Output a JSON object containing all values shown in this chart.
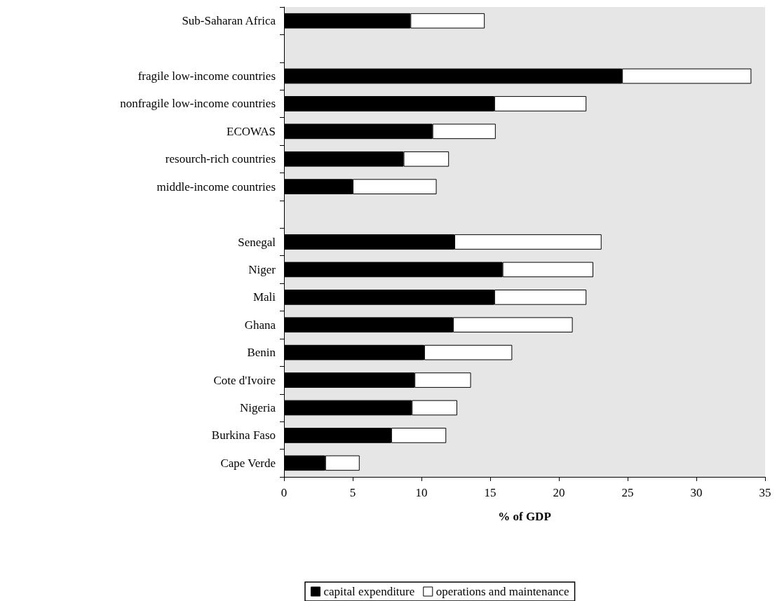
{
  "chart_data": {
    "type": "bar",
    "orientation": "horizontal",
    "stacked": true,
    "xlabel": "% of GDP",
    "categories": [
      "Sub-Saharan Africa",
      null,
      "fragile low-income countries",
      "nonfragile low-income countries",
      "ECOWAS",
      "resourch-rich countries",
      "middle-income countries",
      null,
      "Senegal",
      "Niger",
      "Mali",
      "Ghana",
      "Benin",
      "Cote d'Ivoire",
      "Nigeria",
      "Burkina Faso",
      "Cape Verde"
    ],
    "series": [
      {
        "name": "capital expenditure",
        "color": "#000000",
        "values": [
          9.2,
          null,
          24.6,
          15.3,
          10.8,
          8.7,
          5.0,
          null,
          12.4,
          15.9,
          15.3,
          12.3,
          10.2,
          9.5,
          9.3,
          7.8,
          3.0
        ]
      },
      {
        "name": "operations and maintenance",
        "color": "#ffffff",
        "values": [
          5.4,
          null,
          9.4,
          6.7,
          4.6,
          3.3,
          6.1,
          null,
          10.7,
          6.6,
          6.7,
          8.7,
          6.4,
          4.1,
          3.3,
          4.0,
          2.5
        ]
      }
    ],
    "xlim": [
      0,
      35
    ],
    "xticks": [
      0,
      5,
      10,
      15,
      20,
      25,
      30,
      35
    ],
    "grid": false,
    "legend": "bottom"
  }
}
